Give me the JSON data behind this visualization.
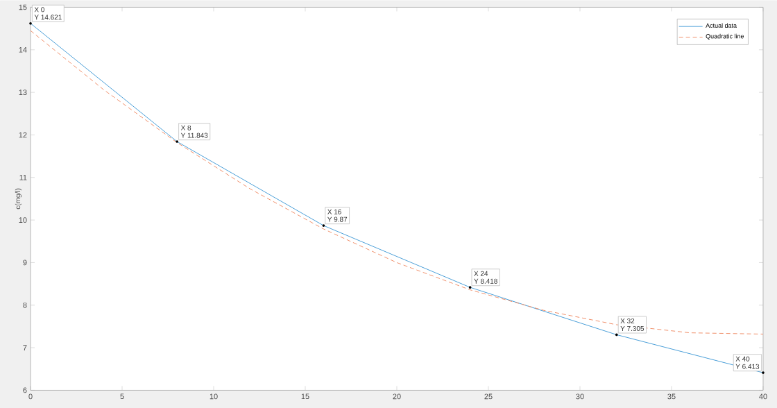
{
  "chart_data": {
    "type": "line",
    "ylabel": "c(mg/l)",
    "xlim": [
      0,
      40
    ],
    "ylim": [
      6,
      15
    ],
    "xticks": [
      0,
      5,
      10,
      15,
      20,
      25,
      30,
      35,
      40
    ],
    "yticks": [
      6,
      7,
      8,
      9,
      10,
      11,
      12,
      13,
      14,
      15
    ],
    "legend": "top right",
    "marker": "none",
    "series": [
      {
        "name": "Actual data",
        "color": "#4a9fd8",
        "line_style": "solid",
        "x": [
          0,
          8,
          16,
          24,
          32,
          40
        ],
        "values": [
          14.621,
          11.843,
          9.87,
          8.418,
          7.305,
          6.413
        ]
      },
      {
        "name": "Quadratic line",
        "color": "#f0906a",
        "line_style": "dashed",
        "x": [
          0,
          4,
          8,
          12,
          16,
          20,
          24,
          28,
          32,
          36,
          40
        ],
        "values": [
          14.45,
          13.06,
          11.82,
          10.73,
          9.79,
          9.0,
          8.36,
          7.88,
          7.54,
          7.35,
          7.32
        ]
      }
    ],
    "annotations": [
      {
        "text": "X 0",
        "x": 0,
        "y": 14.621
      },
      {
        "text": "Y 14.621",
        "x": 0,
        "y": 14.621
      },
      {
        "text": "X 8",
        "x": 8,
        "y": 11.843
      },
      {
        "text": "Y 11.843",
        "x": 8,
        "y": 11.843
      },
      {
        "text": "X 16",
        "x": 16,
        "y": 9.87
      },
      {
        "text": "Y 9.87",
        "x": 16,
        "y": 9.87
      },
      {
        "text": "X 24",
        "x": 24,
        "y": 8.418
      },
      {
        "text": "Y 8.418",
        "x": 24,
        "y": 8.418
      },
      {
        "text": "X 32",
        "x": 32,
        "y": 7.305
      },
      {
        "text": "Y 7.305",
        "x": 32,
        "y": 7.305
      },
      {
        "text": "X 40",
        "x": 40,
        "y": 6.413
      },
      {
        "text": "Y 6.413",
        "x": 40,
        "y": 6.413
      }
    ]
  }
}
